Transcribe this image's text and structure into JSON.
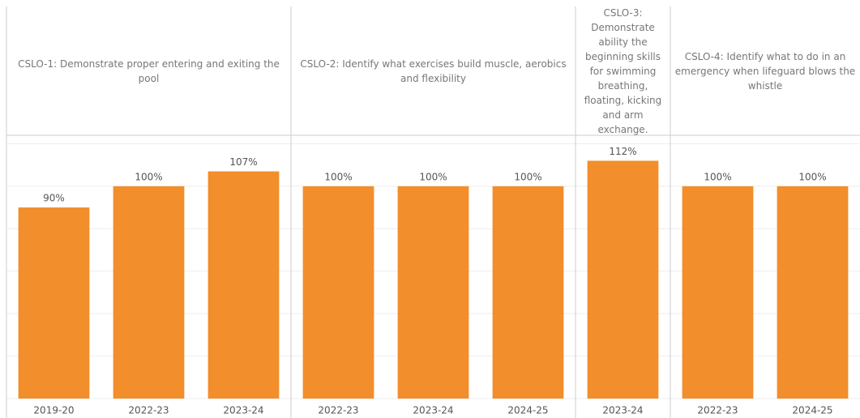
{
  "chart_data": {
    "type": "bar",
    "color": "#f28e2b",
    "ylim": [
      0,
      124
    ],
    "yticks": [
      0,
      20,
      40,
      60,
      80,
      100,
      120
    ],
    "grid": true,
    "panels": [
      {
        "title": "CSLO-1: Demonstrate proper entering and exiting the pool",
        "categories": [
          "2019-20",
          "2022-23",
          "2023-24"
        ],
        "values": [
          90,
          100,
          107
        ],
        "value_labels": [
          "90%",
          "100%",
          "107%"
        ]
      },
      {
        "title": "CSLO-2: Identify what exercises build muscle, aerobics and flexibility",
        "categories": [
          "2022-23",
          "2023-24",
          "2024-25"
        ],
        "values": [
          100,
          100,
          100
        ],
        "value_labels": [
          "100%",
          "100%",
          "100%"
        ]
      },
      {
        "title": "CSLO-3: Demonstrate ability the beginning skills for swimming breathing, floating, kicking and arm exchange.",
        "categories": [
          "2023-24"
        ],
        "values": [
          112
        ],
        "value_labels": [
          "112%"
        ]
      },
      {
        "title": "CSLO-4: Identify what to do in an emergency when lifeguard blows the whistle",
        "categories": [
          "2022-23",
          "2024-25"
        ],
        "values": [
          100,
          100
        ],
        "value_labels": [
          "100%",
          "100%"
        ]
      }
    ]
  }
}
